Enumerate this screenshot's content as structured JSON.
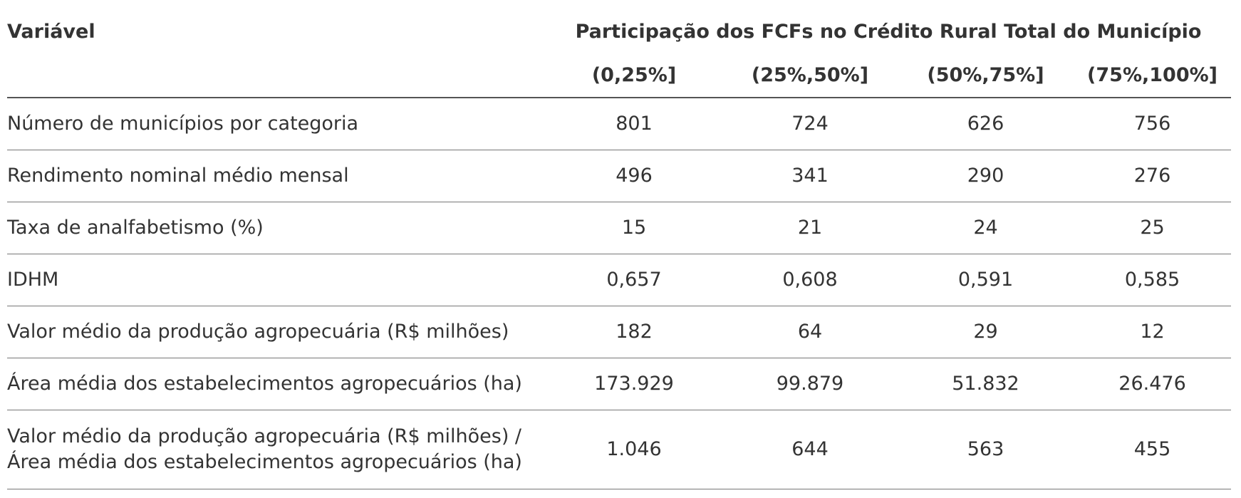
{
  "table": {
    "variable_header": "Variável",
    "group_header": "Participação dos FCFs no Crédito Rural Total do Município",
    "columns": [
      "(0,25%]",
      "(25%,50%]",
      "(50%,75%]",
      "(75%,100%]"
    ],
    "rows": [
      {
        "label": [
          "Número de municípios por categoria"
        ],
        "values": [
          "801",
          "724",
          "626",
          "756"
        ]
      },
      {
        "label": [
          "Rendimento nominal médio mensal"
        ],
        "values": [
          "496",
          "341",
          "290",
          "276"
        ]
      },
      {
        "label": [
          "Taxa de analfabetismo (%)"
        ],
        "values": [
          "15",
          "21",
          "24",
          "25"
        ]
      },
      {
        "label": [
          "IDHM"
        ],
        "values": [
          "0,657",
          "0,608",
          "0,591",
          "0,585"
        ]
      },
      {
        "label": [
          "Valor médio da produção agropecuária (R$ milhões)"
        ],
        "values": [
          "182",
          "64",
          "29",
          "12"
        ]
      },
      {
        "label": [
          "Área média dos estabelecimentos agropecuários (ha)"
        ],
        "values": [
          "173.929",
          "99.879",
          "51.832",
          "26.476"
        ]
      },
      {
        "label": [
          "Valor médio da produção agropecuária (R$ milhões) /",
          "Área média dos estabelecimentos agropecuários (ha)"
        ],
        "values": [
          "1.046",
          "644",
          "563",
          "455"
        ]
      }
    ]
  }
}
